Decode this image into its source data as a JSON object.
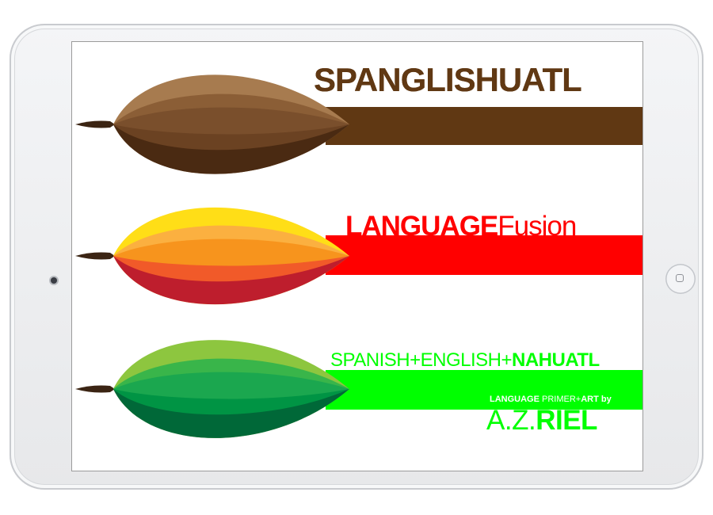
{
  "colors": {
    "brown": "#603813",
    "red": "#ff0000",
    "green": "#00ff00",
    "frame": "#e9eaec"
  },
  "device": {
    "camera_icon": "camera-dot",
    "home_button_icon": "home-square-icon"
  },
  "cover": {
    "title_line_1": "SPANGLISHUATL",
    "title_line_2_bold": "LANGUAGE",
    "title_line_2_regular": "Fusion",
    "subtitle_part_1": "SPANISH+ENGLISH+",
    "subtitle_part_2": "NAHUATL",
    "credit_part_1": "LANGUAGE",
    "credit_part_2": " PRIMER+",
    "credit_part_3": "ART by",
    "author_regular": "A.Z.",
    "author_bold": "RIEL"
  }
}
